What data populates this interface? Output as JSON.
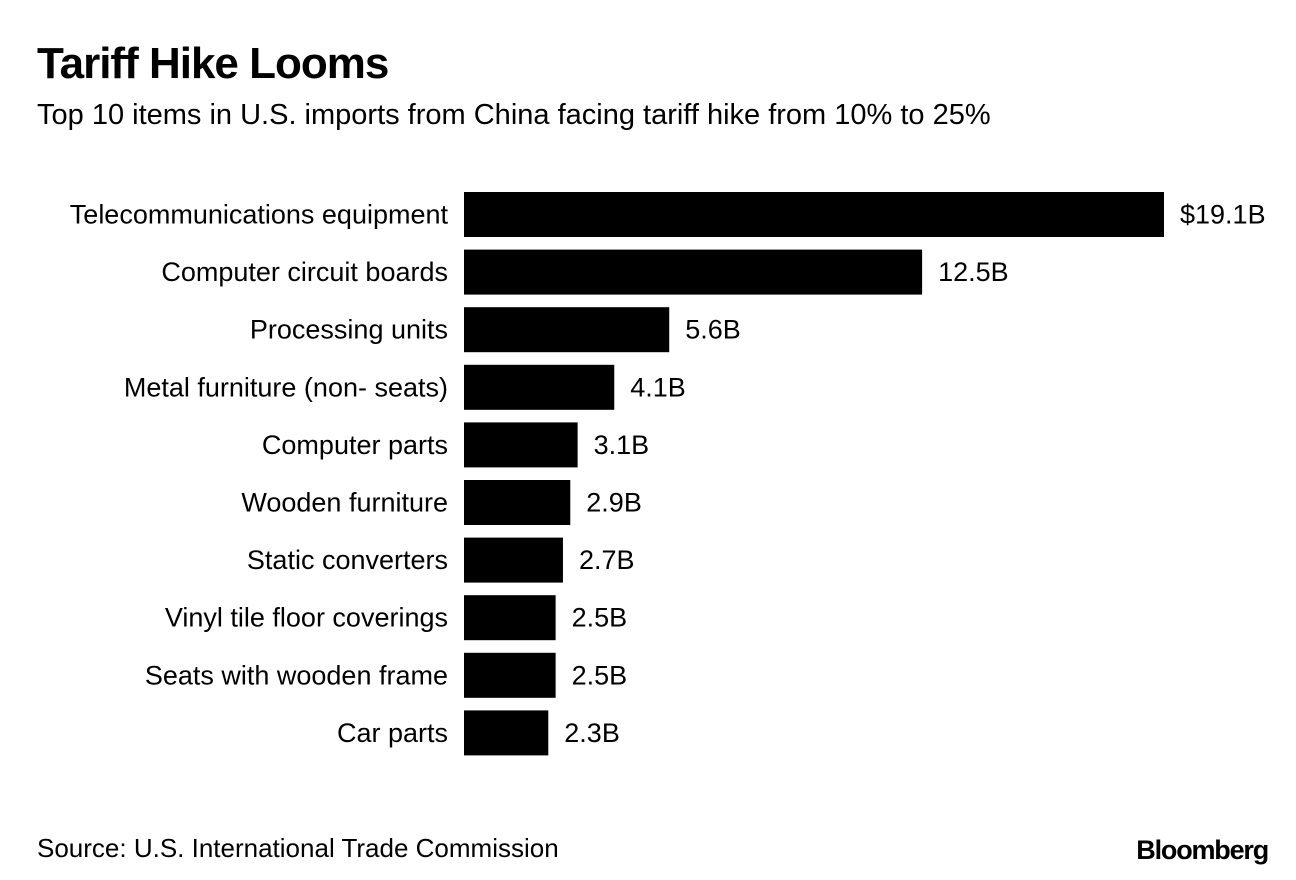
{
  "chart_data": {
    "type": "bar",
    "orientation": "horizontal",
    "title": "Tariff Hike Looms",
    "subtitle": "Top 10 items in U.S. imports from China facing tariff hike from 10% to 25%",
    "categories": [
      "Telecommunications equipment",
      "Computer circuit boards",
      "Processing units",
      "Metal furniture (non- seats)",
      "Computer parts",
      "Wooden furniture",
      "Static converters",
      "Vinyl tile floor coverings",
      "Seats with wooden frame",
      "Car parts"
    ],
    "values": [
      19.1,
      12.5,
      5.6,
      4.1,
      3.1,
      2.9,
      2.7,
      2.5,
      2.5,
      2.3
    ],
    "value_labels": [
      "$19.1B",
      "12.5B",
      "5.6B",
      "4.1B",
      "3.1B",
      "2.9B",
      "2.7B",
      "2.5B",
      "2.5B",
      "2.3B"
    ],
    "xlim": [
      0,
      19.1
    ],
    "grid": false,
    "legend": "none",
    "bar_color": "#000000"
  },
  "footer": {
    "source": "Source: U.S. International Trade Commission",
    "brand": "Bloomberg"
  }
}
